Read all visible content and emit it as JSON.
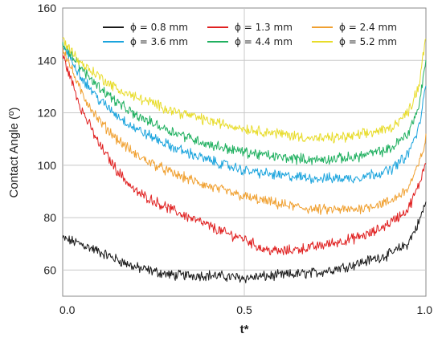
{
  "chart_data": {
    "type": "line",
    "title": "",
    "xlabel": "t*",
    "ylabel": "Contact Angle (º)",
    "xlim": [
      0.0,
      1.0
    ],
    "ylim": [
      50,
      160
    ],
    "xticks": [
      "0.0",
      "0.5",
      "1.0"
    ],
    "yticks": [
      "60",
      "80",
      "100",
      "120",
      "140",
      "160"
    ],
    "grid": true,
    "legend_position": "top",
    "series": [
      {
        "name": "ϕ = 0.8 mm",
        "color": "#1a1a1a",
        "x": [
          0.0,
          0.05,
          0.1,
          0.15,
          0.2,
          0.3,
          0.4,
          0.5,
          0.6,
          0.7,
          0.8,
          0.85,
          0.9,
          0.95,
          0.98,
          1.0
        ],
        "y": [
          72,
          70,
          67,
          64,
          61,
          58,
          58,
          57,
          58,
          59,
          62,
          64,
          66,
          70,
          78,
          86
        ]
      },
      {
        "name": "ϕ = 1.3 mm",
        "color": "#e02020",
        "x": [
          0.0,
          0.05,
          0.1,
          0.15,
          0.2,
          0.3,
          0.4,
          0.45,
          0.5,
          0.55,
          0.6,
          0.7,
          0.8,
          0.85,
          0.9,
          0.95,
          0.98,
          1.0
        ],
        "y": [
          142,
          122,
          108,
          98,
          90,
          83,
          77,
          74,
          72,
          68,
          67,
          69,
          72,
          74,
          78,
          83,
          92,
          102
        ]
      },
      {
        "name": "ϕ = 2.4 mm",
        "color": "#f0a030",
        "x": [
          0.0,
          0.05,
          0.1,
          0.15,
          0.2,
          0.3,
          0.4,
          0.5,
          0.6,
          0.7,
          0.8,
          0.9,
          0.95,
          0.98,
          1.0
        ],
        "y": [
          145,
          128,
          117,
          110,
          104,
          97,
          92,
          88,
          85,
          83,
          83,
          86,
          91,
          100,
          110
        ]
      },
      {
        "name": "ϕ = 3.6 mm",
        "color": "#1ba4dd",
        "x": [
          0.0,
          0.05,
          0.1,
          0.15,
          0.2,
          0.3,
          0.4,
          0.5,
          0.6,
          0.7,
          0.8,
          0.9,
          0.95,
          0.98,
          1.0
        ],
        "y": [
          146,
          134,
          125,
          119,
          114,
          107,
          102,
          98,
          96,
          95,
          95,
          98,
          104,
          114,
          130
        ]
      },
      {
        "name": "ϕ = 4.4 mm",
        "color": "#20b060",
        "x": [
          0.0,
          0.05,
          0.1,
          0.15,
          0.2,
          0.3,
          0.4,
          0.5,
          0.6,
          0.7,
          0.8,
          0.9,
          0.95,
          0.98,
          1.0
        ],
        "y": [
          147,
          137,
          130,
          124,
          119,
          113,
          108,
          105,
          103,
          102,
          103,
          106,
          112,
          122,
          140
        ]
      },
      {
        "name": "ϕ = 5.2 mm",
        "color": "#e8dc2a",
        "x": [
          0.0,
          0.05,
          0.1,
          0.15,
          0.2,
          0.3,
          0.4,
          0.5,
          0.6,
          0.7,
          0.8,
          0.9,
          0.95,
          0.98,
          1.0
        ],
        "y": [
          148,
          139,
          134,
          129,
          126,
          121,
          117,
          114,
          112,
          110,
          111,
          114,
          120,
          130,
          150
        ]
      }
    ]
  }
}
